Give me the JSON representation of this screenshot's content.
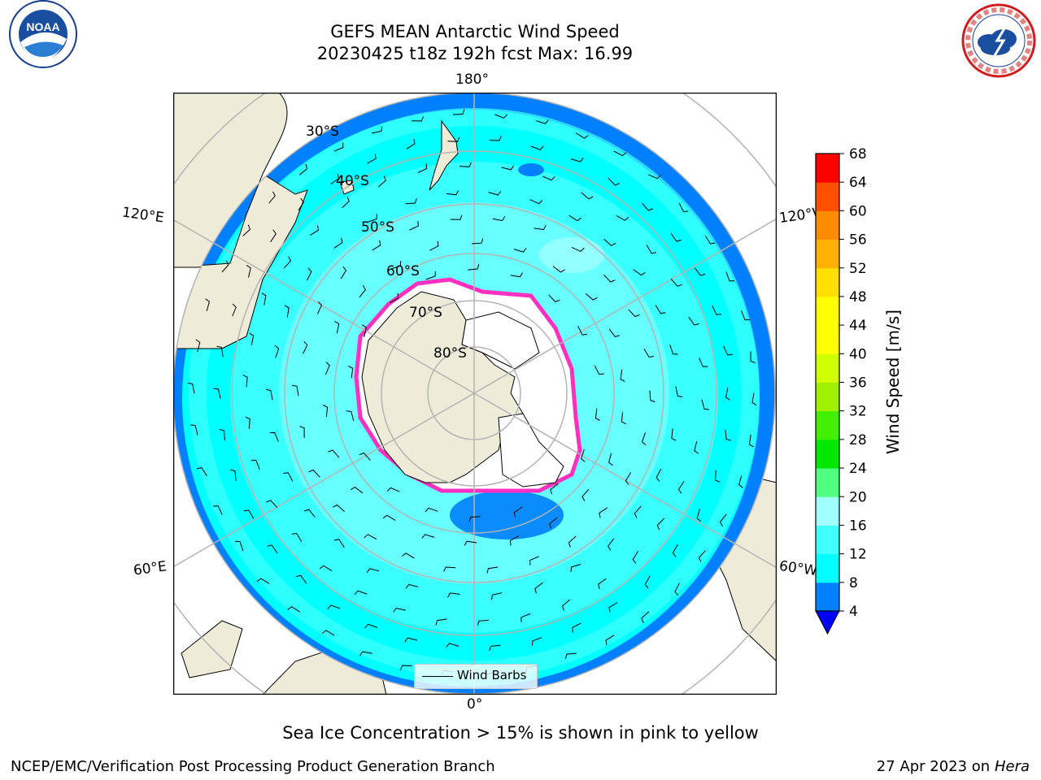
{
  "header": {
    "title_line1": "GEFS MEAN Antarctic Wind Speed",
    "title_line2": "20230425 t18z 192h fcst   Max: 16.99"
  },
  "logos": {
    "left": "noaa-logo",
    "right": "national-weather-service-logo",
    "noaa_text": "NOAA",
    "nws_text": "NATIONAL WEATHER SERVICE"
  },
  "map": {
    "projection": "south-polar-stereographic",
    "lon_labels": {
      "top": "180°",
      "bottom": "0°",
      "upper_left": "120°E",
      "upper_right": "120°W",
      "lower_left": "60°E",
      "lower_right": "60°W"
    },
    "lat_labels": [
      "30°S",
      "40°S",
      "50°S",
      "60°S",
      "70°S",
      "80°S"
    ],
    "legend_label": "Wind Barbs",
    "colors": {
      "land": "#eeecd9",
      "ice_free_background": "#ffffff",
      "wind_4_8": "#0080ff",
      "wind_8_12": "#00ffff",
      "wind_12_16": "#40ffff",
      "wind_16_20": "#a0ffff",
      "sea_ice_edge": "#ff30c0"
    }
  },
  "colorbar": {
    "label": "Wind Speed [m/s]",
    "ticks": [
      "4",
      "8",
      "12",
      "16",
      "20",
      "24",
      "28",
      "32",
      "36",
      "40",
      "44",
      "48",
      "52",
      "56",
      "60",
      "64",
      "68"
    ],
    "band_colors": [
      "#0080ff",
      "#00ffff",
      "#40ffff",
      "#a0ffff",
      "#50ff80",
      "#00e800",
      "#40f000",
      "#a0f000",
      "#d0ff00",
      "#ffff00",
      "#ffff00",
      "#ffe000",
      "#ffb000",
      "#ff8c00",
      "#ff5000",
      "#ff0000"
    ],
    "extend_color": "#0000ff"
  },
  "footer": {
    "note": "Sea Ice Concentration > 15% is shown in pink to yellow",
    "left": "NCEP/EMC/Verification Post Processing Product Generation Branch",
    "right_date": "27 Apr 2023 on ",
    "right_host": "Hera"
  }
}
